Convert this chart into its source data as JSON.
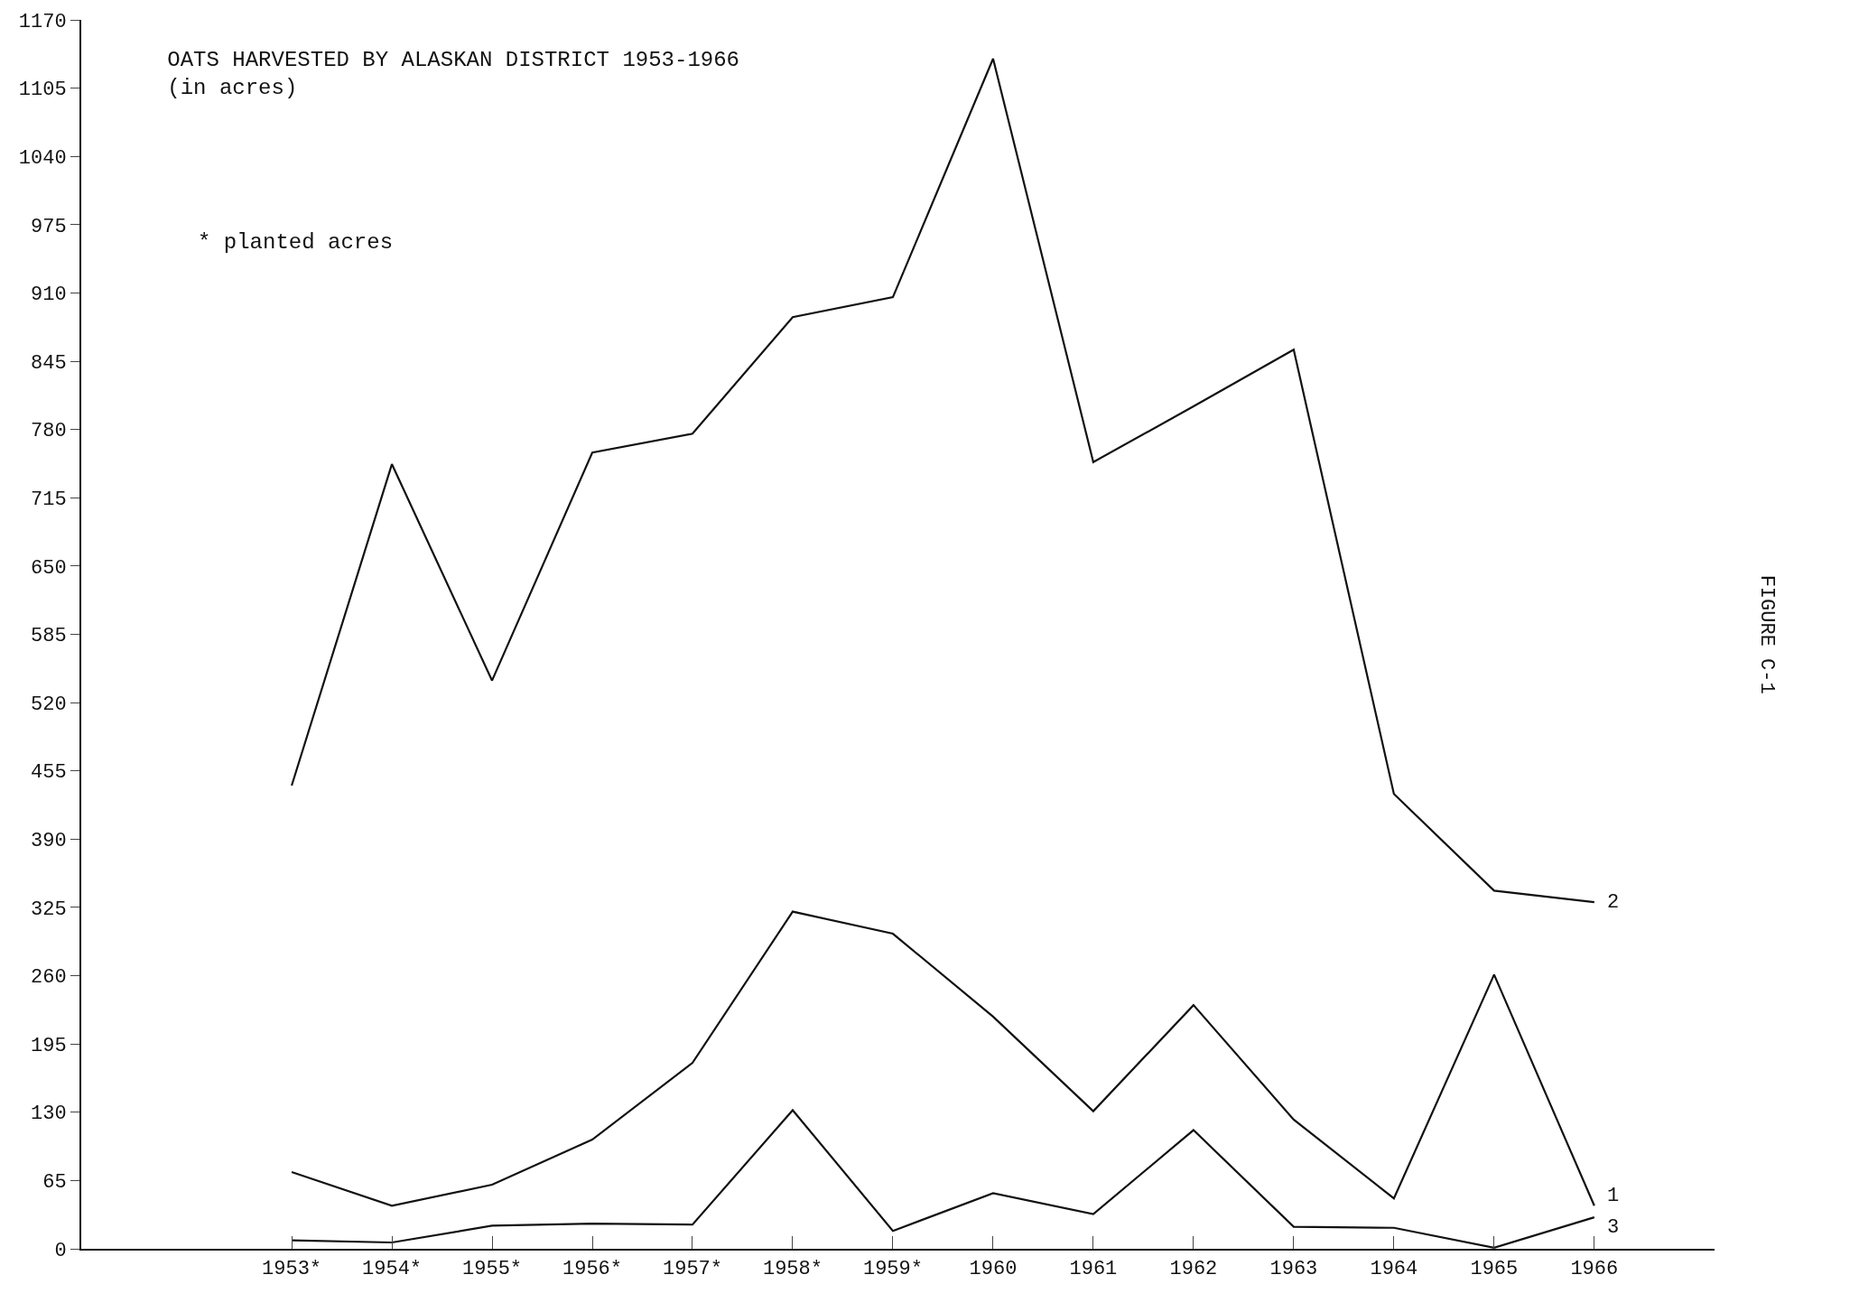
{
  "chart_data": {
    "type": "line",
    "title": "OATS HARVESTED BY ALASKAN DISTRICT 1953-1966",
    "subtitle": "(in acres)",
    "categories": [
      "1953*",
      "1954*",
      "1955*",
      "1956*",
      "1957*",
      "1958*",
      "1959*",
      "1960",
      "1961",
      "1962",
      "1963",
      "1964",
      "1965",
      "1966"
    ],
    "series": [
      {
        "name": "2",
        "color": "#111111",
        "values": [
          441,
          747,
          541,
          758,
          776,
          887,
          906,
          1133,
          749,
          802,
          856,
          433,
          341,
          330
        ]
      },
      {
        "name": "1",
        "color": "#111111",
        "values": [
          73,
          41,
          61,
          104,
          177,
          321,
          300,
          221,
          131,
          232,
          123,
          48,
          261,
          41
        ]
      },
      {
        "name": "3",
        "color": "#111111",
        "values": [
          8,
          6,
          22,
          24,
          23,
          132,
          17,
          53,
          33,
          113,
          21,
          20,
          1,
          30
        ]
      }
    ],
    "ylim": [
      0,
      1170
    ],
    "yticks": [
      0,
      65,
      130,
      195,
      260,
      325,
      390,
      455,
      520,
      585,
      650,
      715,
      780,
      845,
      910,
      975,
      1040,
      1105,
      1170
    ],
    "grid": false,
    "legend": false,
    "marker": "none",
    "line_style": "solid",
    "annotations": [
      "* planted acres",
      "FIGURE C-1"
    ]
  }
}
